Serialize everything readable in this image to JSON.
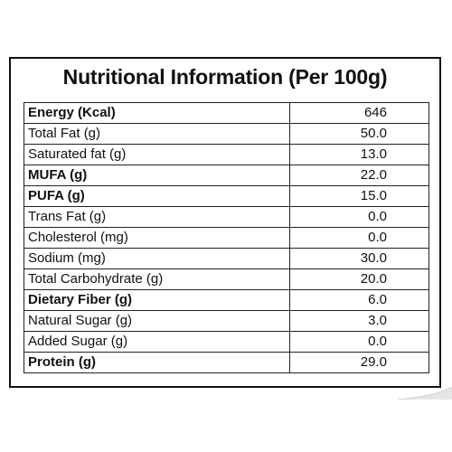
{
  "title": "Nutritional Information (Per 100g)",
  "rows": [
    {
      "label": "Energy (Kcal)",
      "value": "646"
    },
    {
      "label": "Total Fat (g)",
      "value": "50.0"
    },
    {
      "label": "Saturated fat (g)",
      "value": "13.0"
    },
    {
      "label": "MUFA (g)",
      "value": "22.0"
    },
    {
      "label": "PUFA (g)",
      "value": "15.0"
    },
    {
      "label": "Trans Fat (g)",
      "value": "0.0"
    },
    {
      "label": "Cholesterol (mg)",
      "value": "0.0"
    },
    {
      "label": "Sodium (mg)",
      "value": "30.0"
    },
    {
      "label": "Total Carbohydrate (g)",
      "value": "20.0"
    },
    {
      "label": "Dietary Fiber (g)",
      "value": "6.0"
    },
    {
      "label": "Natural Sugar (g)",
      "value": "3.0"
    },
    {
      "label": "Added Sugar (g)",
      "value": "0.0"
    },
    {
      "label": "Protein (g)",
      "value": "29.0"
    }
  ]
}
